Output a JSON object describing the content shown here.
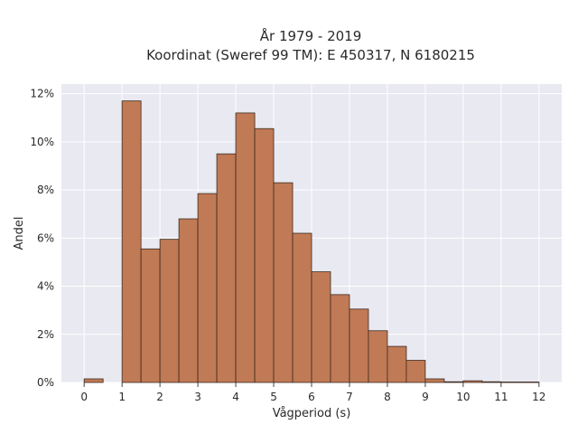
{
  "chart_data": {
    "type": "bar",
    "title_line1": "År 1979 - 2019",
    "title_line2": "Koordinat (Sweref 99 TM): E 450317, N 6180215",
    "xlabel": "Vågperiod (s)",
    "ylabel": "Andel",
    "xlim": [
      -0.6,
      12.6
    ],
    "ylim": [
      0,
      12.4
    ],
    "bin_width": 0.5,
    "bins": [
      {
        "x0": 0.0,
        "value": 0.15
      },
      {
        "x0": 0.5,
        "value": 0.0
      },
      {
        "x0": 1.0,
        "value": 11.7
      },
      {
        "x0": 1.5,
        "value": 5.55
      },
      {
        "x0": 2.0,
        "value": 5.95
      },
      {
        "x0": 2.5,
        "value": 6.8
      },
      {
        "x0": 3.0,
        "value": 7.85
      },
      {
        "x0": 3.5,
        "value": 9.5
      },
      {
        "x0": 4.0,
        "value": 11.2
      },
      {
        "x0": 4.5,
        "value": 10.55
      },
      {
        "x0": 5.0,
        "value": 8.3
      },
      {
        "x0": 5.5,
        "value": 6.2
      },
      {
        "x0": 6.0,
        "value": 4.6
      },
      {
        "x0": 6.5,
        "value": 3.65
      },
      {
        "x0": 7.0,
        "value": 3.05
      },
      {
        "x0": 7.5,
        "value": 2.15
      },
      {
        "x0": 8.0,
        "value": 1.5
      },
      {
        "x0": 8.5,
        "value": 0.92
      },
      {
        "x0": 9.0,
        "value": 0.15
      },
      {
        "x0": 9.5,
        "value": 0.03
      },
      {
        "x0": 10.0,
        "value": 0.07
      },
      {
        "x0": 10.5,
        "value": 0.03
      },
      {
        "x0": 11.0,
        "value": 0.02
      },
      {
        "x0": 11.5,
        "value": 0.02
      }
    ],
    "x_ticks": [
      0,
      1,
      2,
      3,
      4,
      5,
      6,
      7,
      8,
      9,
      10,
      11,
      12
    ],
    "x_tick_labels": [
      "0",
      "1",
      "2",
      "3",
      "4",
      "5",
      "6",
      "7",
      "8",
      "9",
      "10",
      "11",
      "12"
    ],
    "y_ticks": [
      0,
      2,
      4,
      6,
      8,
      10,
      12
    ],
    "y_tick_labels": [
      "0%",
      "2%",
      "4%",
      "6%",
      "8%",
      "10%",
      "12%"
    ],
    "grid": true,
    "bar_color": "#c07a55",
    "bar_edge_color": "#3d2a20",
    "plot_bg_color": "#e9e9f1",
    "grid_color": "#ffffff"
  }
}
